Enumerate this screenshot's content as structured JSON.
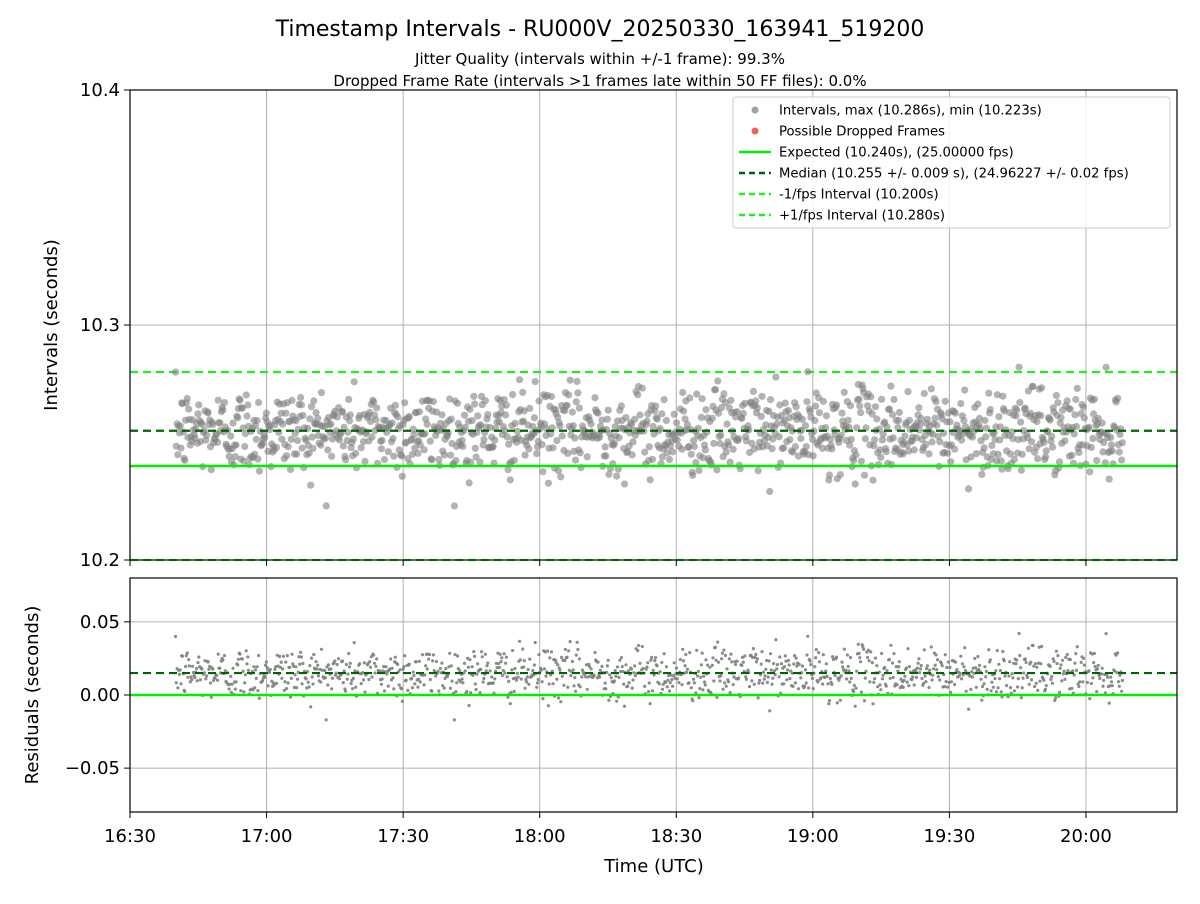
{
  "title": "Timestamp Intervals - RU000V_20250330_163941_519200",
  "subtitle_jitter": "Jitter Quality (intervals within +/-1 frame): 99.3%",
  "subtitle_dropped": "Dropped Frame Rate (intervals >1 frames late within 50 FF files): 0.0%",
  "colors": {
    "points": "#808080",
    "dropped": "#ff0000",
    "expected": "#00ee00",
    "median": "#006400",
    "interval": "#22ee22",
    "grid": "#b0b0b0"
  },
  "chart_data": [
    {
      "type": "scatter",
      "ylabel": "Intervals (seconds)",
      "xlabel": "",
      "ylim": [
        10.2,
        10.4
      ],
      "yticks": [
        "10.2",
        "10.3",
        "10.4"
      ],
      "xticks": [
        "16:30",
        "17:00",
        "17:30",
        "18:00",
        "18:30",
        "19:00",
        "19:30",
        "20:00"
      ],
      "xlim_minutes": [
        990,
        1220
      ],
      "data_range_minutes": [
        1000,
        1208
      ],
      "grid": true,
      "legend_position": "top-right",
      "legend": [
        {
          "label": "Intervals, max (10.286s), min (10.223s)",
          "marker": "circle",
          "color": "#a0a0a0"
        },
        {
          "label": "Possible Dropped Frames",
          "marker": "circle",
          "color": "#f06060"
        },
        {
          "label": "Expected (10.240s), (25.00000 fps)",
          "marker": "solid",
          "color": "#00ee00"
        },
        {
          "label": "Median (10.255 +/- 0.009 s), (24.96227 +/- 0.02 fps)",
          "marker": "dashed",
          "color": "#006400"
        },
        {
          "label": "-1/fps Interval (10.200s)",
          "marker": "dashed",
          "color": "#22ee22"
        },
        {
          "label": "+1/fps Interval (10.280s)",
          "marker": "dashed",
          "color": "#22ee22"
        }
      ],
      "lines": {
        "expected": 10.24,
        "median": 10.255,
        "minus_one": 10.2,
        "plus_one": 10.28
      },
      "points_stats": {
        "count": 1220,
        "median": 10.255,
        "std": 0.009,
        "max": 10.286,
        "min": 10.223
      }
    },
    {
      "type": "scatter",
      "ylabel": "Residuals (seconds)",
      "xlabel": "Time (UTC)",
      "ylim": [
        -0.08,
        0.08
      ],
      "yticks": [
        "−0.05",
        "0.00",
        "0.05"
      ],
      "xticks": [
        "16:30",
        "17:00",
        "17:30",
        "18:00",
        "18:30",
        "19:00",
        "19:30",
        "20:00"
      ],
      "xlim_minutes": [
        990,
        1220
      ],
      "grid": true,
      "lines": {
        "zero": 0.0,
        "median": 0.015
      },
      "points_stats": {
        "count": 1220,
        "median": 0.015,
        "std": 0.009,
        "max": 0.046,
        "min": -0.017
      }
    }
  ]
}
